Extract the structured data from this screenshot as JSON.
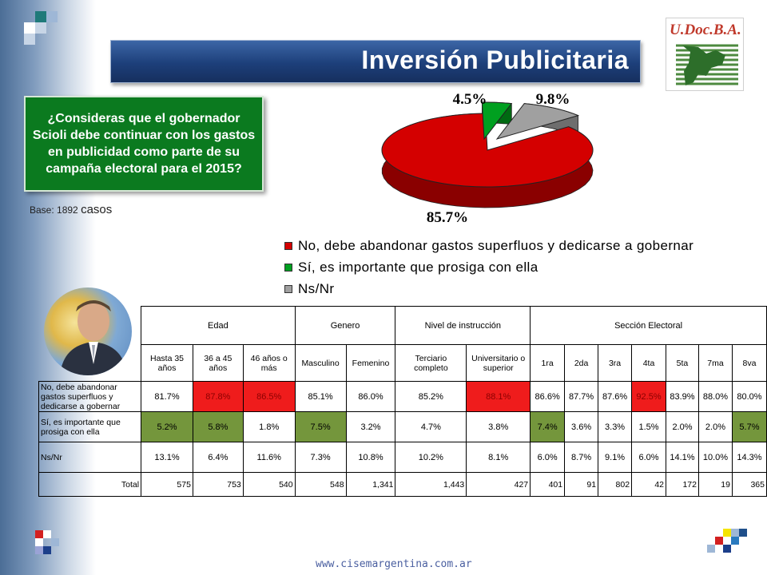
{
  "title": "Inversión Publicitaria",
  "logo_text": "U.Doc.B.A.",
  "question": "¿Consideras que el gobernador Scioli debe continuar con los gastos en publicidad como parte de su campaña electoral para el 2015?",
  "base": {
    "label": "Base: 1892",
    "unit": "casos"
  },
  "footer": "www.cisemargentina.com.ar",
  "colors": {
    "no": "#d40000",
    "si": "#00a020",
    "nsnr": "#a0a0a0",
    "highlight_red": "#ef1c1c",
    "highlight_green": "#74963c",
    "title_bar": "#1d3f7a",
    "question_box": "#0b7a1f"
  },
  "chart_data": {
    "type": "pie",
    "slices": [
      {
        "label": "No, debe abandonar gastos superfluos y dedicarse a gobernar",
        "value": 85.7,
        "value_label": "85.7%"
      },
      {
        "label": "Sí, es importante que prosiga con ella",
        "value": 4.5,
        "value_label": "4.5%"
      },
      {
        "label": "Ns/Nr",
        "value": 9.8,
        "value_label": "9.8%"
      }
    ],
    "legend_position": "bottom"
  },
  "table": {
    "groups": [
      "Edad",
      "Genero",
      "Nivel de instrucción",
      "Sección Electoral"
    ],
    "columns": [
      "Hasta 35 años",
      "36 a 45 años",
      "46 años o más",
      "Masculino",
      "Femenino",
      "Terciario completo",
      "Universitario o superior",
      "1ra",
      "2da",
      "3ra",
      "4ta",
      "5ta",
      "7ma",
      "8va"
    ],
    "rows": [
      {
        "label": "No, debe abandonar gastos superfluos y dedicarse a gobernar",
        "values": [
          "81.7%",
          "87.8%",
          "86.5%",
          "85.1%",
          "86.0%",
          "85.2%",
          "88.1%",
          "86.6%",
          "87.7%",
          "87.6%",
          "92.5%",
          "83.9%",
          "88.0%",
          "80.0%"
        ],
        "highlight": [
          false,
          true,
          true,
          false,
          false,
          false,
          true,
          false,
          false,
          false,
          true,
          false,
          false,
          false
        ]
      },
      {
        "label": "Sí, es importante que prosiga con ella",
        "values": [
          "5.2%",
          "5.8%",
          "1.8%",
          "7.5%",
          "3.2%",
          "4.7%",
          "3.8%",
          "7.4%",
          "3.6%",
          "3.3%",
          "1.5%",
          "2.0%",
          "2.0%",
          "5.7%"
        ],
        "highlight": [
          true,
          true,
          false,
          true,
          false,
          false,
          false,
          true,
          false,
          false,
          false,
          false,
          false,
          true
        ]
      },
      {
        "label": "Ns/Nr",
        "values": [
          "13.1%",
          "6.4%",
          "11.6%",
          "7.3%",
          "10.8%",
          "10.2%",
          "8.1%",
          "6.0%",
          "8.7%",
          "9.1%",
          "6.0%",
          "14.1%",
          "10.0%",
          "14.3%"
        ],
        "highlight": [
          false,
          false,
          false,
          false,
          false,
          false,
          false,
          false,
          false,
          false,
          false,
          false,
          false,
          false
        ]
      },
      {
        "label": "Total",
        "values": [
          "575",
          "753",
          "540",
          "548",
          "1,341",
          "1,443",
          "427",
          "401",
          "91",
          "802",
          "42",
          "172",
          "19",
          "365"
        ],
        "highlight": [
          false,
          false,
          false,
          false,
          false,
          false,
          false,
          false,
          false,
          false,
          false,
          false,
          false,
          false
        ]
      }
    ]
  }
}
